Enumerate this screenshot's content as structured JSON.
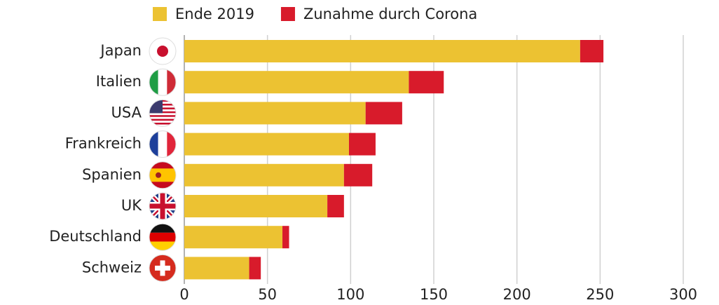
{
  "chart_data": {
    "type": "stacked-bar",
    "orientation": "horizontal",
    "categories": [
      "Japan",
      "Italien",
      "USA",
      "Frankreich",
      "Spanien",
      "UK",
      "Deutschland",
      "Schweiz"
    ],
    "series": [
      {
        "name": "Ende 2019",
        "color": "#ecc232",
        "values": [
          238,
          135,
          109,
          99,
          96,
          86,
          59,
          39
        ]
      },
      {
        "name": "Zunahme durch Corona",
        "color": "#d81b2b",
        "values": [
          14,
          21,
          22,
          16,
          17,
          10,
          4,
          7
        ]
      }
    ],
    "xlim": [
      0,
      300
    ],
    "xticks": [
      0,
      50,
      100,
      150,
      200,
      250,
      300
    ],
    "grid": true,
    "legend": "top"
  }
}
